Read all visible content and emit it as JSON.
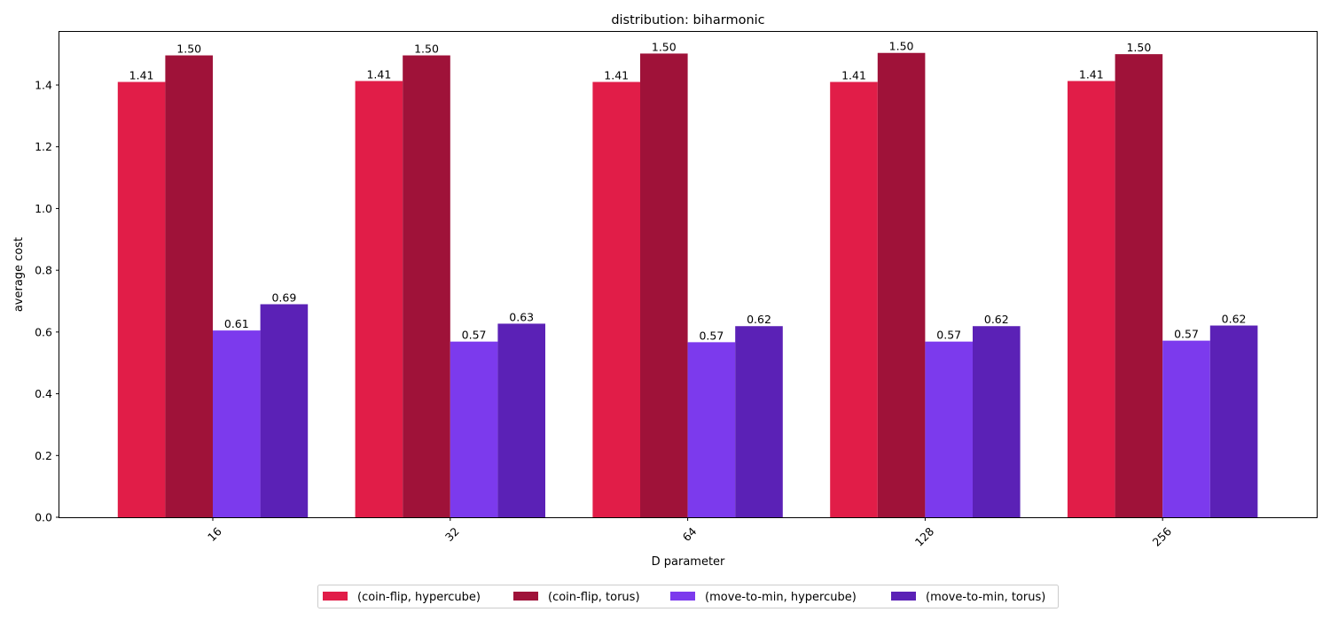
{
  "chart_data": {
    "type": "bar",
    "title": "distribution: biharmonic",
    "xlabel": "D parameter",
    "ylabel": "average cost",
    "categories": [
      "16",
      "32",
      "64",
      "128",
      "256"
    ],
    "ylim": [
      0,
      1.575
    ],
    "yticks": [
      0.0,
      0.2,
      0.4,
      0.6,
      0.8,
      1.0,
      1.2,
      1.4
    ],
    "ytick_labels": [
      "0.0",
      "0.2",
      "0.4",
      "0.6",
      "0.8",
      "1.0",
      "1.2",
      "1.4"
    ],
    "grid": false,
    "legend_position": "bottom-center",
    "series": [
      {
        "name": "(coin-flip, hypercube)",
        "color": "#e11d48",
        "values": [
          1.41,
          1.413,
          1.41,
          1.41,
          1.413
        ],
        "labels": [
          "1.41",
          "1.41",
          "1.41",
          "1.41",
          "1.41"
        ]
      },
      {
        "name": "(coin-flip, torus)",
        "color": "#9f1239",
        "values": [
          1.496,
          1.496,
          1.502,
          1.504,
          1.5
        ],
        "labels": [
          "1.50",
          "1.50",
          "1.50",
          "1.50",
          "1.50"
        ]
      },
      {
        "name": "(move-to-min, hypercube)",
        "color": "#7c3aed",
        "values": [
          0.605,
          0.569,
          0.567,
          0.569,
          0.572
        ],
        "labels": [
          "0.61",
          "0.57",
          "0.57",
          "0.57",
          "0.57"
        ]
      },
      {
        "name": "(move-to-min, torus)",
        "color": "#5b21b6",
        "values": [
          0.69,
          0.627,
          0.619,
          0.619,
          0.621
        ],
        "labels": [
          "0.69",
          "0.63",
          "0.62",
          "0.62",
          "0.62"
        ]
      }
    ]
  }
}
